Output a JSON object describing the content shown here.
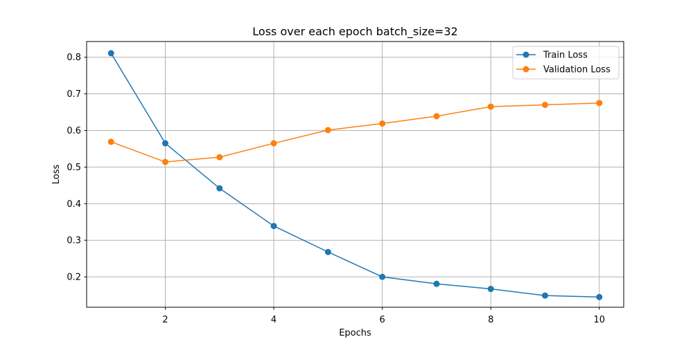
{
  "chart_data": {
    "type": "line",
    "title": "Loss over each epoch batch_size=32",
    "xlabel": "Epochs",
    "ylabel": "Loss",
    "xlim": [
      0.55,
      10.45
    ],
    "ylim": [
      0.117,
      0.843
    ],
    "xticks": [
      2,
      4,
      6,
      8,
      10
    ],
    "yticks": [
      0.2,
      0.3,
      0.4,
      0.5,
      0.6,
      0.7,
      0.8
    ],
    "ytick_labels": [
      "0.2",
      "0.3",
      "0.4",
      "0.5",
      "0.6",
      "0.7",
      "0.8"
    ],
    "grid": true,
    "legend_position": "top-right",
    "x": [
      1,
      2,
      3,
      4,
      5,
      6,
      7,
      8,
      9,
      10
    ],
    "series": [
      {
        "name": "Train Loss",
        "color": "#1f77b4",
        "marker": "circle",
        "values": [
          0.811,
          0.565,
          0.442,
          0.339,
          0.268,
          0.2,
          0.181,
          0.167,
          0.149,
          0.145
        ]
      },
      {
        "name": "Validation Loss",
        "color": "#ff7f0e",
        "marker": "circle",
        "values": [
          0.569,
          0.514,
          0.527,
          0.565,
          0.601,
          0.619,
          0.639,
          0.665,
          0.67,
          0.675
        ]
      }
    ]
  }
}
